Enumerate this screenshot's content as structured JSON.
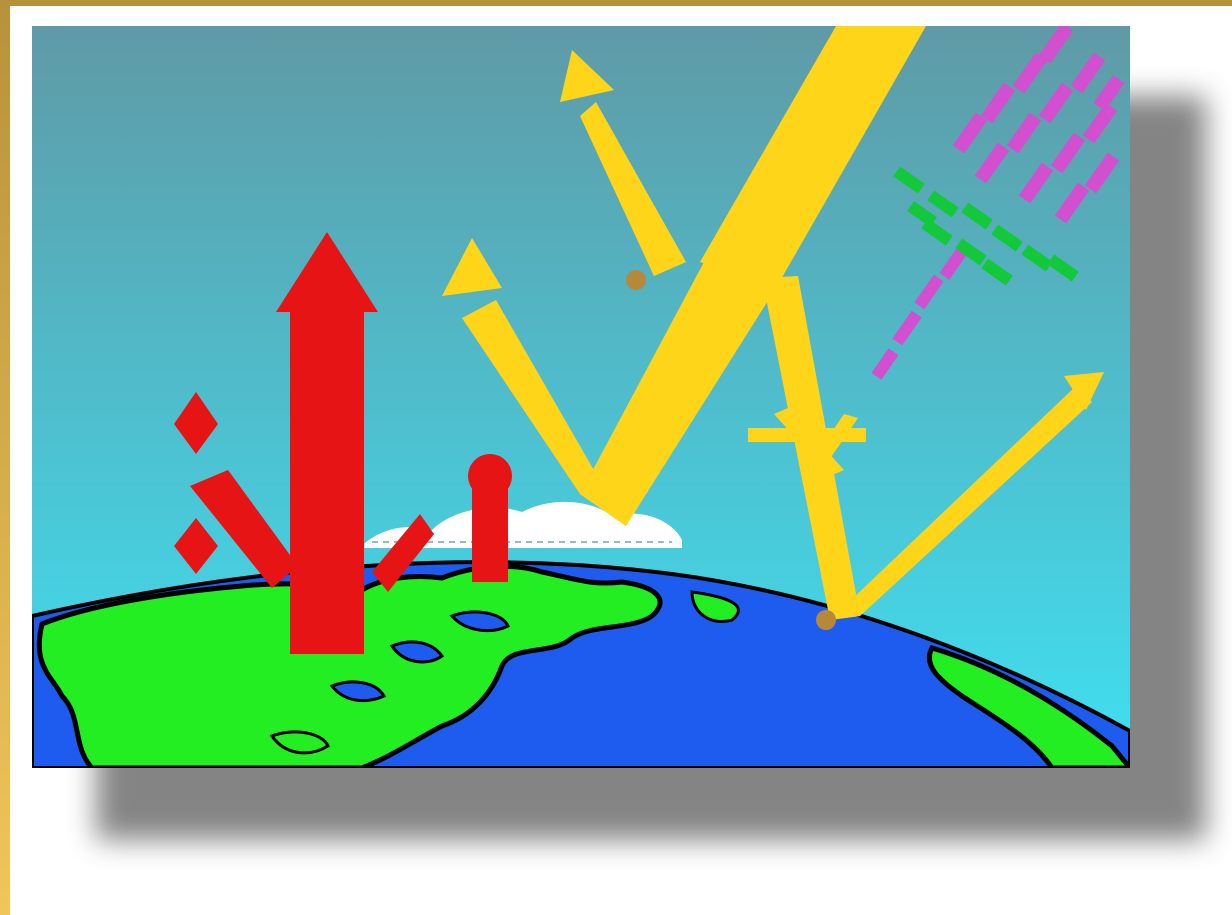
{
  "colors": {
    "frame_gold": "#b8923a",
    "sky_top": "#5f9aa6",
    "sky_bottom": "#3fe0f2",
    "ocean": "#1e5cf0",
    "land": "#22ee22",
    "sun_ray": "#ffd51a",
    "heat_arrow": "#e61414",
    "pollutant_pink": "#d24fd0",
    "pollutant_green": "#14c83c",
    "cloud": "#ffffff"
  },
  "icons": [
    "sun-ray-arrow-icon",
    "heat-arrow-icon",
    "cloud-icon",
    "pollutant-particles-icon",
    "earth-globe-icon"
  ]
}
